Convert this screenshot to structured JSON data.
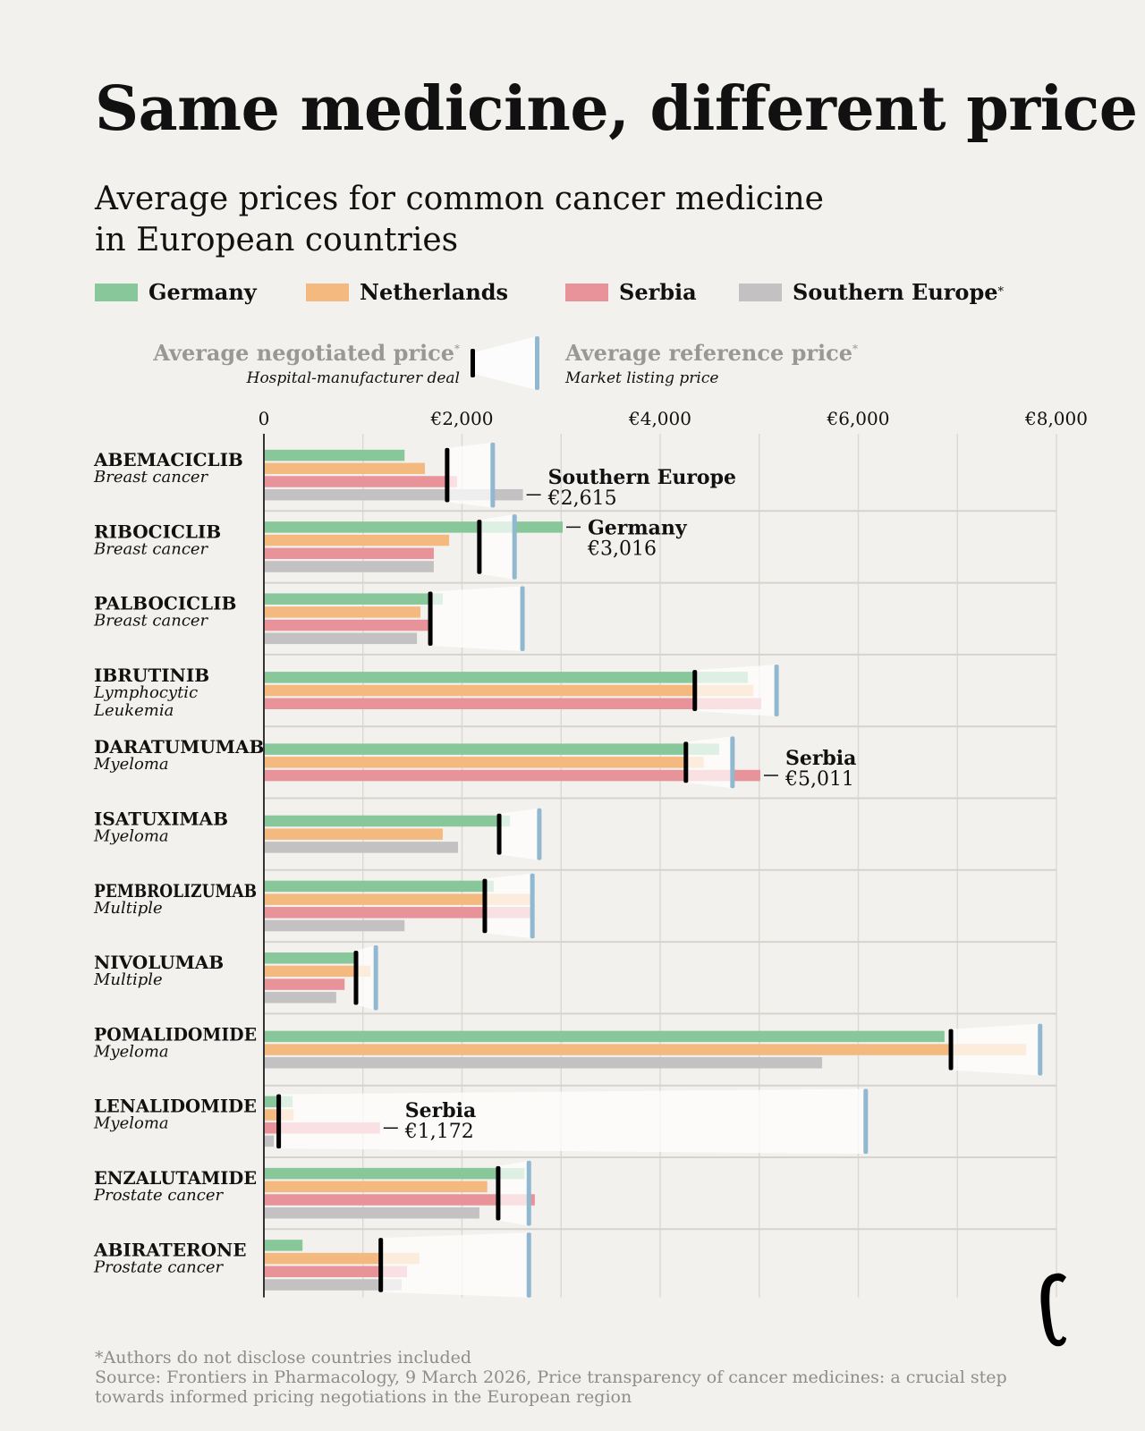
{
  "title": "Same medicine, different price",
  "subtitle_line1": "Average prices for common cancer medicine",
  "subtitle_line2": "in European countries",
  "legend": [
    {
      "name": "Germany",
      "color": "#88c79a"
    },
    {
      "name": "Netherlands",
      "color": "#f4b97f"
    },
    {
      "name": "Serbia",
      "color": "#e8929a"
    },
    {
      "name": "Southern Europe",
      "color": "#c3c1c1",
      "asterisk": "*"
    }
  ],
  "key": {
    "negotiated_title": "Average negotiated price",
    "negotiated_sub": "Hospital-manufacturer deal",
    "reference_title": "Average reference price",
    "reference_sub": "Market listing price",
    "asterisk": "*",
    "negotiated_color": "#000000",
    "reference_color": "#90b8d0"
  },
  "footnote": "*Authors do not disclose countries included",
  "source": "Source: Frontiers in Pharmacology, 9 March 2026, Price transparency of cancer medicines: a crucial step towards informed pricing negotiations in the European region",
  "chart_data": {
    "type": "bar",
    "orientation": "horizontal",
    "xlim": [
      0,
      8000
    ],
    "x_ticks": [
      "0",
      "€2,000",
      "€4,000",
      "€6,000",
      "€8,000"
    ],
    "x_tick_values": [
      0,
      2000,
      4000,
      6000,
      8000
    ],
    "grid": true,
    "legend_placement": "top",
    "series_names": [
      "Germany",
      "Netherlands",
      "Serbia",
      "Southern Europe"
    ],
    "drugs": [
      {
        "name": "ABEMACICLIB",
        "indication": "Breast cancer",
        "values": [
          1420,
          1625,
          1950,
          2615
        ],
        "negotiated": 1850,
        "reference": 2310
      },
      {
        "name": "RIBOCICLIB",
        "indication": "Breast cancer",
        "values": [
          3016,
          1870,
          1715,
          1715
        ],
        "negotiated": 2175,
        "reference": 2530
      },
      {
        "name": "PALBOCICLIB",
        "indication": "Breast cancer",
        "values": [
          1805,
          1580,
          1690,
          1545
        ],
        "negotiated": 1680,
        "reference": 2610
      },
      {
        "name": "IBRUTINIB",
        "indication": "Lymphocytic Leukemia",
        "values": [
          4885,
          4940,
          5020,
          null
        ],
        "negotiated": 4350,
        "reference": 5175
      },
      {
        "name": "DARATUMUMAB",
        "indication": "Myeloma",
        "values": [
          4595,
          4440,
          5011,
          null
        ],
        "negotiated": 4260,
        "reference": 4730
      },
      {
        "name": "ISATUXIMAB",
        "indication": "Myeloma",
        "values": [
          2485,
          1805,
          null,
          1960
        ],
        "negotiated": 2375,
        "reference": 2780
      },
      {
        "name": "PEMBROLIZUMAB",
        "indication": "Multiple",
        "values": [
          2320,
          2690,
          2690,
          1420
        ],
        "negotiated": 2230,
        "reference": 2710
      },
      {
        "name": "NIVOLUMAB",
        "indication": "Multiple",
        "values": [
          930,
          1075,
          815,
          730
        ],
        "negotiated": 930,
        "reference": 1130
      },
      {
        "name": "POMALIDOMIDE",
        "indication": "Myeloma",
        "values": [
          6870,
          7695,
          null,
          5635
        ],
        "negotiated": 6935,
        "reference": 7835
      },
      {
        "name": "LENALIDOMIDE",
        "indication": "Myeloma",
        "values": [
          290,
          300,
          1172,
          100
        ],
        "negotiated": 150,
        "reference": 6075
      },
      {
        "name": "ENZALUTAMIDE",
        "indication": "Prostate cancer",
        "values": [
          2630,
          2255,
          2735,
          2175
        ],
        "negotiated": 2365,
        "reference": 2675
      },
      {
        "name": "ABIRATERONE",
        "indication": "Prostate cancer",
        "values": [
          390,
          1570,
          1445,
          1390
        ],
        "negotiated": 1180,
        "reference": 2675
      }
    ],
    "annotations": [
      {
        "drug": "ABEMACICLIB",
        "series": "Southern Europe",
        "label": "Southern Europe",
        "value_label": "€2,615"
      },
      {
        "drug": "RIBOCICLIB",
        "series": "Germany",
        "label": "Germany",
        "value_label": "€3,016"
      },
      {
        "drug": "DARATUMUMAB",
        "series": "Serbia",
        "label": "Serbia",
        "value_label": "€5,011"
      },
      {
        "drug": "LENALIDOMIDE",
        "series": "Serbia",
        "label": "Serbia",
        "value_label": "€1,172"
      }
    ]
  }
}
